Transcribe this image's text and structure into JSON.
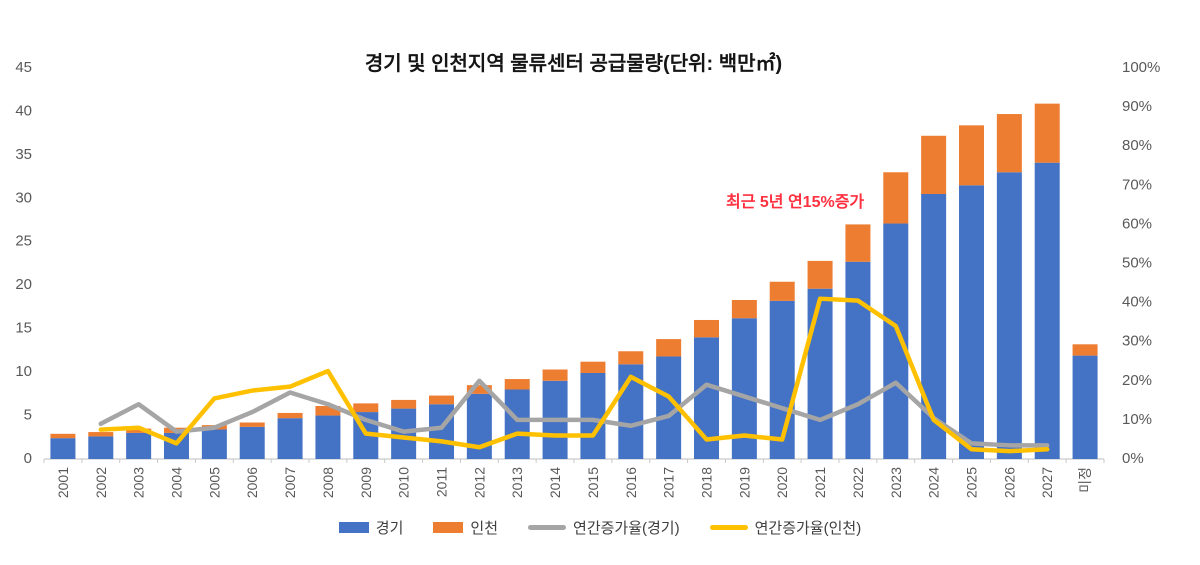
{
  "title": "경기 및 인천지역 물류센터 공급물량(단위: 백만㎡)",
  "annotation": {
    "text": "최근 5년 연15%증가",
    "color": "#FF3040"
  },
  "colors": {
    "gyeonggi_bar": "#4472C4",
    "incheon_bar": "#ED7D31",
    "growth_gyeonggi_line": "#A5A5A5",
    "growth_incheon_line": "#FFC000",
    "axis_text": "#595959",
    "axis_line": "#C9C9C9",
    "legend_text": "#3F3F3F"
  },
  "legend": [
    {
      "label": "경기",
      "type": "bar",
      "color": "#4472C4"
    },
    {
      "label": "인천",
      "type": "bar",
      "color": "#ED7D31"
    },
    {
      "label": "연간증가율(경기)",
      "type": "line",
      "color": "#A5A5A5"
    },
    {
      "label": "연간증가율(인천)",
      "type": "line",
      "color": "#FFC000"
    }
  ],
  "chart_data": {
    "type": "bar",
    "subtype": "stacked-bars-with-lines",
    "title": "경기 및 인천지역 물류센터 공급물량(단위: 백만㎡)",
    "categories": [
      "2001",
      "2002",
      "2003",
      "2004",
      "2005",
      "2006",
      "2007",
      "2008",
      "2009",
      "2010",
      "2011",
      "2012",
      "2013",
      "2014",
      "2015",
      "2016",
      "2017",
      "2018",
      "2019",
      "2020",
      "2021",
      "2022",
      "2023",
      "2024",
      "2025",
      "2026",
      "2027",
      "미정"
    ],
    "series": [
      {
        "name": "경기",
        "type": "bar",
        "stack": "supply",
        "axis": "left",
        "color": "#4472C4",
        "values": [
          2.4,
          2.6,
          3.0,
          3.0,
          3.4,
          3.7,
          4.7,
          5.0,
          5.4,
          5.8,
          6.3,
          7.5,
          8.0,
          9.0,
          9.9,
          10.9,
          11.8,
          14.0,
          16.2,
          18.2,
          19.6,
          22.7,
          27.1,
          30.5,
          31.5,
          33.0,
          34.1,
          11.9
        ]
      },
      {
        "name": "인천",
        "type": "bar",
        "stack": "supply",
        "axis": "left",
        "color": "#ED7D31",
        "values": [
          0.5,
          0.5,
          0.5,
          0.6,
          0.5,
          0.5,
          0.6,
          1.1,
          1.0,
          1.0,
          1.0,
          1.0,
          1.2,
          1.3,
          1.3,
          1.5,
          2.0,
          2.0,
          2.1,
          2.2,
          3.2,
          4.3,
          5.9,
          6.7,
          6.9,
          6.7,
          6.8,
          1.3
        ]
      },
      {
        "name": "연간증가율(경기)",
        "type": "line",
        "axis": "right",
        "color": "#A5A5A5",
        "unit": "%",
        "values": [
          null,
          9,
          14,
          7,
          8,
          12,
          17,
          14,
          10,
          7,
          8,
          20,
          10,
          10,
          10,
          8.5,
          11,
          19,
          16,
          13,
          10,
          14,
          19.5,
          10.5,
          4,
          3.5,
          3.5,
          null
        ]
      },
      {
        "name": "연간증가율(인천)",
        "type": "line",
        "axis": "right",
        "color": "#FFC000",
        "unit": "%",
        "values": [
          null,
          7.5,
          8,
          4,
          15.5,
          17.5,
          18.5,
          22.5,
          6.5,
          5.5,
          4.5,
          3,
          6.5,
          6,
          6,
          21,
          16,
          5,
          6,
          5,
          41,
          40.5,
          34,
          10,
          2.5,
          2,
          2.5,
          null
        ]
      }
    ],
    "left_axis": {
      "min": 0,
      "max": 45,
      "step": 5,
      "suffix": "",
      "ticks": [
        "0",
        "5",
        "10",
        "15",
        "20",
        "25",
        "30",
        "35",
        "40",
        "45"
      ]
    },
    "right_axis": {
      "min": 0,
      "max": 100,
      "step": 10,
      "suffix": "%",
      "ticks": [
        "0%",
        "10%",
        "20%",
        "30%",
        "40%",
        "50%",
        "60%",
        "70%",
        "80%",
        "90%",
        "100%"
      ]
    },
    "grid": false,
    "legend_position": "bottom",
    "annotation": {
      "text": "최근 5년 연15%증가",
      "near_category": "2022"
    }
  }
}
